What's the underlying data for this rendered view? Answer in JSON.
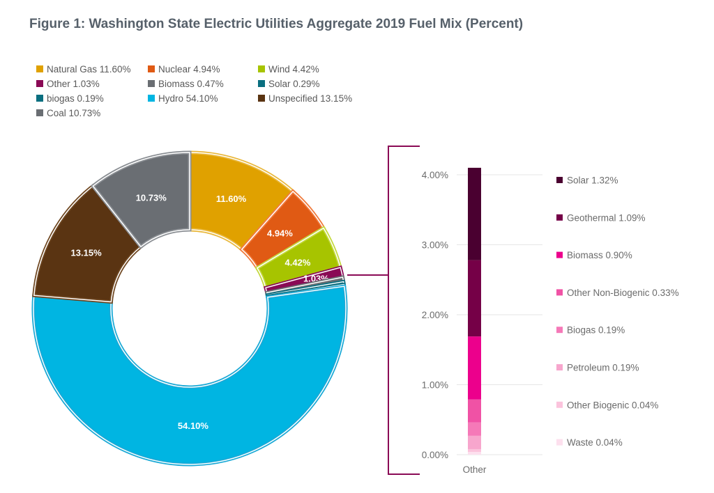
{
  "title": "Figure 1: Washington State Electric Utilities Aggregate 2019 Fuel Mix (Percent)",
  "chart_data": [
    {
      "type": "pie",
      "variant": "donut",
      "slices": [
        {
          "name": "Natural Gas",
          "value": 11.6,
          "label": "11.60%",
          "legend": "Natural Gas 11.60%",
          "color": "#e0a100",
          "border": "#e9b83c",
          "show_label": true
        },
        {
          "name": "Nuclear",
          "value": 4.94,
          "label": "4.94%",
          "legend": "Nuclear 4.94%",
          "color": "#e05a14",
          "border": "#f07a3c",
          "show_label": true
        },
        {
          "name": "Wind",
          "value": 4.42,
          "label": "4.42%",
          "legend": "Wind  4.42%",
          "color": "#a7c400",
          "border": "#c3d83c",
          "show_label": true
        },
        {
          "name": "Other",
          "value": 1.03,
          "label": "1.03%",
          "legend": "Other 1.03%",
          "color": "#8a0a55",
          "border": "#8a0a55",
          "show_label": true
        },
        {
          "name": "Biomass",
          "value": 0.47,
          "label": "",
          "legend": "Biomass 0.47%",
          "color": "#6a6e73",
          "border": "#6a6e73",
          "show_label": false
        },
        {
          "name": "Solar",
          "value": 0.29,
          "label": "",
          "legend": "Solar 0.29%",
          "color": "#0a6f80",
          "border": "#0a6f80",
          "show_label": false
        },
        {
          "name": "biogas",
          "value": 0.19,
          "label": "",
          "legend": "biogas 0.19%",
          "color": "#0a6f80",
          "border": "#0a6f80",
          "show_label": false
        },
        {
          "name": "Hydro",
          "value": 54.1,
          "label": "54.10%",
          "legend": "Hydro 54.10%",
          "color": "#00b5e2",
          "border": "#1aa9d6",
          "show_label": true
        },
        {
          "name": "Unspecified",
          "value": 13.15,
          "label": "13.15%",
          "legend": "Unspecified 13.15%",
          "color": "#5a3412",
          "border": "#6e4620",
          "show_label": true
        },
        {
          "name": "Coal",
          "value": 10.73,
          "label": "10.73%",
          "legend": "Coal 10.73%",
          "color": "#6a6e73",
          "border": "#8a8e93",
          "show_label": true
        }
      ],
      "legend_order": [
        "Natural Gas",
        "Nuclear",
        "Wind",
        "Other",
        "Biomass",
        "Solar",
        "biogas",
        "Hydro",
        "Unspecified",
        "Coal"
      ],
      "legend_position": "top-left"
    },
    {
      "type": "bar",
      "variant": "stacked",
      "categories": [
        "Other"
      ],
      "ylim": [
        0,
        4
      ],
      "yticks": [
        "0.00%",
        "1.00%",
        "2.00%",
        "3.00%",
        "4.00%"
      ],
      "grid": true,
      "series": [
        {
          "name": "Waste",
          "value": 0.04,
          "legend": "Waste 0.04%",
          "color": "#fde0ee"
        },
        {
          "name": "Other Biogenic",
          "value": 0.04,
          "legend": "Other Biogenic 0.04%",
          "color": "#fbc3dc"
        },
        {
          "name": "Petroleum",
          "value": 0.19,
          "legend": "Petroleum 0.19%",
          "color": "#f7a6cd"
        },
        {
          "name": "Biogas",
          "value": 0.19,
          "legend": "Biogas 0.19%",
          "color": "#f579b8"
        },
        {
          "name": "Other Non-Biogenic",
          "value": 0.33,
          "legend": "Other Non-Biogenic 0.33%",
          "color": "#f052a5"
        },
        {
          "name": "Biomass",
          "value": 0.9,
          "legend": "Biomass 0.90%",
          "color": "#ec008c"
        },
        {
          "name": "Geothermal",
          "value": 1.09,
          "legend": "Geothermal 1.09%",
          "color": "#750047"
        },
        {
          "name": "Solar",
          "value": 1.32,
          "legend": "Solar 1.32%",
          "color": "#4a0030"
        }
      ],
      "legend_position": "right",
      "connector_color": "#8a0a55"
    }
  ]
}
